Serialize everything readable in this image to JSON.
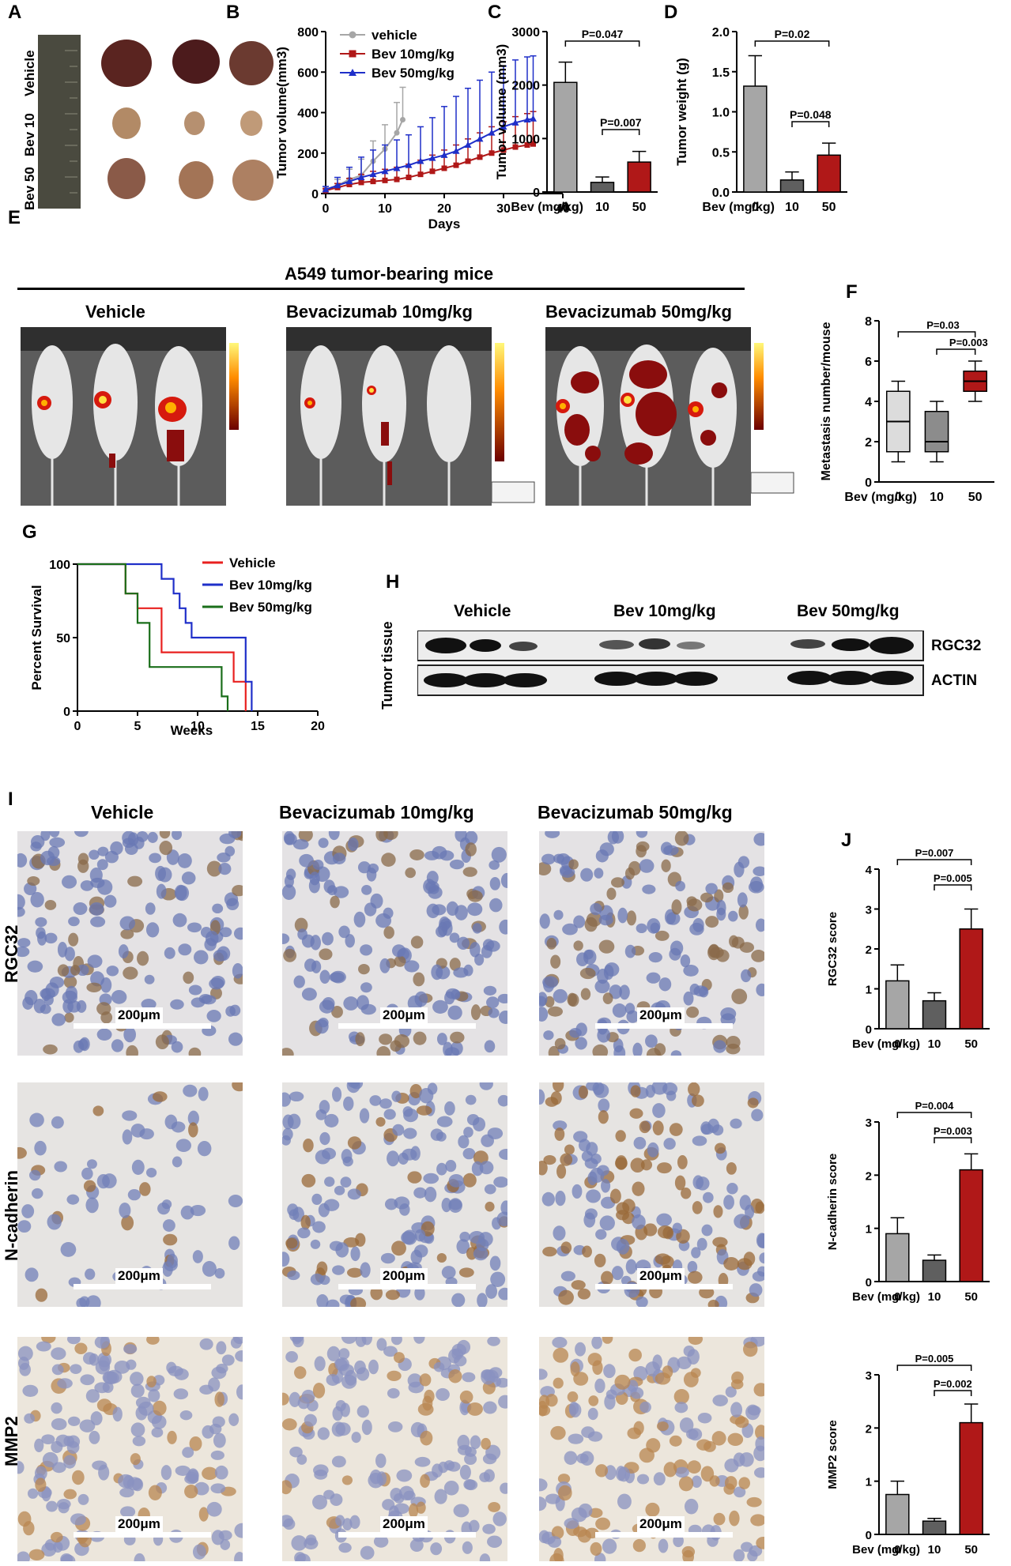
{
  "panel_labels": [
    "A",
    "B",
    "C",
    "D",
    "E",
    "F",
    "G",
    "H",
    "I",
    "J"
  ],
  "panel_a": {
    "row_labels": [
      "Vehicle",
      "Bev 10",
      "Bev 50"
    ]
  },
  "chart_data": [
    {
      "id": "B",
      "type": "line",
      "xlabel": "Days",
      "ylabel": "Tumor volume(mm3)",
      "xlim": [
        0,
        40
      ],
      "ylim": [
        0,
        800
      ],
      "xticks": [
        "0",
        "10",
        "20",
        "30",
        "40"
      ],
      "yticks": [
        "0",
        "200",
        "400",
        "600",
        "800"
      ],
      "legend_position": "top-left",
      "series": [
        {
          "name": "vehicle",
          "color": "#a6a6a6",
          "marker": "circle",
          "x": [
            0,
            2,
            4,
            6,
            8,
            10,
            12,
            13
          ],
          "y": [
            20,
            40,
            70,
            90,
            160,
            220,
            300,
            365
          ],
          "err": [
            15,
            30,
            50,
            80,
            100,
            120,
            150,
            160
          ]
        },
        {
          "name": "Bev 10mg/kg",
          "color": "#b01818",
          "marker": "square",
          "x": [
            0,
            2,
            4,
            6,
            8,
            10,
            12,
            14,
            16,
            18,
            20,
            22,
            24,
            26,
            28,
            30,
            32,
            34,
            35
          ],
          "y": [
            15,
            30,
            45,
            55,
            60,
            65,
            70,
            80,
            95,
            110,
            125,
            140,
            160,
            180,
            200,
            215,
            230,
            240,
            245
          ],
          "err": [
            10,
            20,
            30,
            40,
            50,
            55,
            60,
            65,
            70,
            80,
            90,
            100,
            110,
            120,
            130,
            140,
            150,
            155,
            160
          ]
        },
        {
          "name": "Bev 50mg/kg",
          "color": "#1f2fc9",
          "marker": "triangle",
          "x": [
            0,
            2,
            4,
            6,
            8,
            10,
            12,
            14,
            16,
            18,
            20,
            22,
            24,
            26,
            28,
            30,
            32,
            34,
            35
          ],
          "y": [
            20,
            40,
            60,
            80,
            95,
            110,
            125,
            140,
            160,
            175,
            190,
            210,
            240,
            270,
            300,
            330,
            350,
            365,
            370
          ],
          "err": [
            15,
            40,
            70,
            100,
            120,
            130,
            140,
            150,
            170,
            200,
            240,
            270,
            280,
            290,
            300,
            300,
            310,
            310,
            310
          ]
        }
      ]
    },
    {
      "id": "C",
      "type": "bar",
      "ylabel": "Tumor volume (mm3)",
      "xlabel": "Bev (mg/kg)",
      "categories": [
        "0",
        "10",
        "50"
      ],
      "values": [
        2050,
        180,
        560
      ],
      "err": [
        380,
        100,
        200
      ],
      "colors": [
        "#a6a6a6",
        "#5f5f5f",
        "#b01818"
      ],
      "ylim": [
        0,
        3000
      ],
      "yticks": [
        "0",
        "1000",
        "2000",
        "3000"
      ],
      "annotations": [
        {
          "text": "P=0.047",
          "from": 0,
          "to": 2
        },
        {
          "text": "P=0.007",
          "from": 1,
          "to": 2
        }
      ]
    },
    {
      "id": "D",
      "type": "bar",
      "ylabel": "Tumor weight (g)",
      "xlabel": "Bev (mg/kg)",
      "categories": [
        "0",
        "10",
        "50"
      ],
      "values": [
        1.32,
        0.15,
        0.46
      ],
      "err": [
        0.38,
        0.1,
        0.15
      ],
      "colors": [
        "#a6a6a6",
        "#5f5f5f",
        "#b01818"
      ],
      "ylim": [
        0,
        2.0
      ],
      "yticks": [
        "0.0",
        "0.5",
        "1.0",
        "1.5",
        "2.0"
      ],
      "annotations": [
        {
          "text": "P=0.02",
          "from": 0,
          "to": 2
        },
        {
          "text": "P=0.048",
          "from": 1,
          "to": 2
        }
      ]
    },
    {
      "id": "F",
      "type": "box",
      "ylabel": "Metastasis number/mouse",
      "xlabel": "Bev (mg/kg)",
      "categories": [
        "0",
        "10",
        "50"
      ],
      "boxes": [
        {
          "min": 1,
          "q1": 1.5,
          "median": 3,
          "q3": 4.5,
          "max": 5
        },
        {
          "min": 1,
          "q1": 1.5,
          "median": 2,
          "q3": 3.5,
          "max": 4
        },
        {
          "min": 4,
          "q1": 4.5,
          "median": 5,
          "q3": 5.5,
          "max": 6
        }
      ],
      "colors": [
        "#dcdcdc",
        "#8c8c8c",
        "#b01818"
      ],
      "ylim": [
        0,
        8
      ],
      "yticks": [
        "0",
        "2",
        "4",
        "6",
        "8"
      ],
      "annotations": [
        {
          "text": "P=0.03",
          "from": 0,
          "to": 2
        },
        {
          "text": "P=0.003",
          "from": 1,
          "to": 2
        }
      ]
    },
    {
      "id": "G",
      "type": "line",
      "ylabel": "Percent Survival",
      "xlabel": "Weeks",
      "xlim": [
        0,
        20
      ],
      "ylim": [
        0,
        100
      ],
      "xticks": [
        "0",
        "5",
        "10",
        "15",
        "20"
      ],
      "yticks": [
        "0",
        "50",
        "100"
      ],
      "legend_position": "top-right",
      "series": [
        {
          "name": "Vehicle",
          "color": "#e8201f",
          "steps": [
            [
              0,
              100
            ],
            [
              4,
              100
            ],
            [
              4,
              80
            ],
            [
              5,
              80
            ],
            [
              5,
              70
            ],
            [
              7,
              70
            ],
            [
              7,
              40
            ],
            [
              13,
              40
            ],
            [
              13,
              20
            ],
            [
              14,
              20
            ],
            [
              14,
              0
            ]
          ]
        },
        {
          "name": "Bev 10mg/kg",
          "color": "#1f2fc9",
          "steps": [
            [
              0,
              100
            ],
            [
              7,
              100
            ],
            [
              7,
              90
            ],
            [
              8,
              90
            ],
            [
              8,
              80
            ],
            [
              8.5,
              80
            ],
            [
              8.5,
              70
            ],
            [
              9,
              70
            ],
            [
              9,
              60
            ],
            [
              9.5,
              60
            ],
            [
              9.5,
              50
            ],
            [
              14,
              50
            ],
            [
              14,
              20
            ],
            [
              14.5,
              20
            ],
            [
              14.5,
              0
            ]
          ]
        },
        {
          "name": "Bev 50mg/kg",
          "color": "#1a6e1a",
          "steps": [
            [
              0,
              100
            ],
            [
              4,
              100
            ],
            [
              4,
              80
            ],
            [
              5,
              80
            ],
            [
              5,
              60
            ],
            [
              6,
              60
            ],
            [
              6,
              30
            ],
            [
              12,
              30
            ],
            [
              12,
              10
            ],
            [
              12.5,
              10
            ],
            [
              12.5,
              0
            ]
          ]
        }
      ]
    },
    {
      "id": "J1",
      "type": "bar",
      "ylabel": "RGC32 score",
      "xlabel": "Bev (mg/kg)",
      "categories": [
        "0",
        "10",
        "50"
      ],
      "values": [
        1.2,
        0.7,
        2.5
      ],
      "err": [
        0.4,
        0.2,
        0.5
      ],
      "colors": [
        "#a6a6a6",
        "#5f5f5f",
        "#b01818"
      ],
      "ylim": [
        0,
        4
      ],
      "yticks": [
        "0",
        "1",
        "2",
        "3",
        "4"
      ],
      "annotations": [
        {
          "text": "P=0.007",
          "from": 0,
          "to": 2
        },
        {
          "text": "P=0.005",
          "from": 1,
          "to": 2
        }
      ]
    },
    {
      "id": "J2",
      "type": "bar",
      "ylabel": "N-cadherin score",
      "xlabel": "Bev (mg/kg)",
      "categories": [
        "0",
        "10",
        "50"
      ],
      "values": [
        0.9,
        0.4,
        2.1
      ],
      "err": [
        0.3,
        0.1,
        0.3
      ],
      "colors": [
        "#a6a6a6",
        "#5f5f5f",
        "#b01818"
      ],
      "ylim": [
        0,
        3
      ],
      "yticks": [
        "0",
        "1",
        "2",
        "3"
      ],
      "annotations": [
        {
          "text": "P=0.004",
          "from": 0,
          "to": 2
        },
        {
          "text": "P=0.003",
          "from": 1,
          "to": 2
        }
      ]
    },
    {
      "id": "J3",
      "type": "bar",
      "ylabel": "MMP2 score",
      "xlabel": "Bev (mg/kg)",
      "categories": [
        "0",
        "10",
        "50"
      ],
      "values": [
        0.75,
        0.25,
        2.1
      ],
      "err": [
        0.25,
        0.05,
        0.35
      ],
      "colors": [
        "#a6a6a6",
        "#5f5f5f",
        "#b01818"
      ],
      "ylim": [
        0,
        3
      ],
      "yticks": [
        "0",
        "1",
        "2",
        "3"
      ],
      "annotations": [
        {
          "text": "P=0.005",
          "from": 0,
          "to": 2
        },
        {
          "text": "P=0.002",
          "from": 1,
          "to": 2
        }
      ]
    }
  ],
  "panel_e": {
    "title": "A549 tumor-bearing mice",
    "groups": [
      "Vehicle",
      "Bevacizumab 10mg/kg",
      "Bevacizumab 50mg/kg"
    ]
  },
  "panel_h": {
    "side_label": "Tumor tissue",
    "groups": [
      "Vehicle",
      "Bev 10mg/kg",
      "Bev 50mg/kg"
    ],
    "bands": [
      "RGC32",
      "ACTIN"
    ]
  },
  "panel_i": {
    "columns": [
      "Vehicle",
      "Bevacizumab 10mg/kg",
      "Bevacizumab 50mg/kg"
    ],
    "rows": [
      "RGC32",
      "N-cadherin",
      "MMP2"
    ],
    "scale_label": "200μm"
  }
}
